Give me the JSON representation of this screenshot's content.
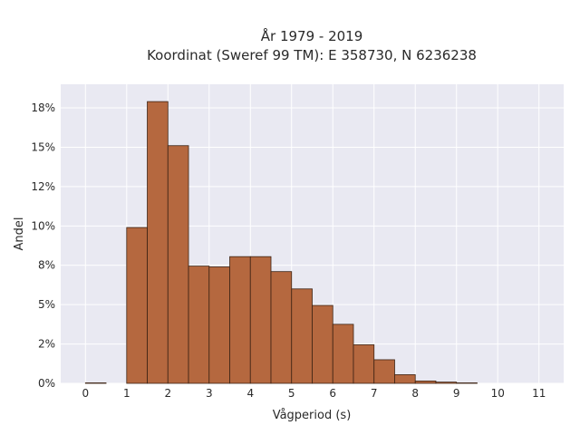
{
  "chart_data": {
    "type": "bar",
    "title_line1": "År 1979 - 2019",
    "title_line2": "Koordinat (Sweref 99 TM): E 358730, N 6236238",
    "xlabel": "Vågperiod (s)",
    "ylabel": "Andel",
    "bin_width": 0.5,
    "bins": [
      {
        "start": 0.0,
        "value": 0.03
      },
      {
        "start": 1.0,
        "value": 9.9
      },
      {
        "start": 1.5,
        "value": 17.9
      },
      {
        "start": 2.0,
        "value": 15.1
      },
      {
        "start": 2.5,
        "value": 7.45
      },
      {
        "start": 3.0,
        "value": 7.4
      },
      {
        "start": 3.5,
        "value": 8.05
      },
      {
        "start": 4.0,
        "value": 8.05
      },
      {
        "start": 4.5,
        "value": 7.1
      },
      {
        "start": 5.0,
        "value": 6.0
      },
      {
        "start": 5.5,
        "value": 4.95
      },
      {
        "start": 6.0,
        "value": 3.75
      },
      {
        "start": 6.5,
        "value": 2.45
      },
      {
        "start": 7.0,
        "value": 1.5
      },
      {
        "start": 7.5,
        "value": 0.55
      },
      {
        "start": 8.0,
        "value": 0.15
      },
      {
        "start": 8.5,
        "value": 0.08
      },
      {
        "start": 9.0,
        "value": 0.03
      }
    ],
    "xlim": [
      -0.6,
      11.6
    ],
    "ylim": [
      0,
      19
    ],
    "x_ticks": [
      0,
      1,
      2,
      3,
      4,
      5,
      6,
      7,
      8,
      9,
      10,
      11
    ],
    "y_ticks": [
      0,
      2.5,
      5,
      7.5,
      10,
      12.5,
      15,
      17.5
    ],
    "y_tick_labels": [
      "0%",
      "2%",
      "5%",
      "8%",
      "10%",
      "12%",
      "15%",
      "18%"
    ],
    "grid": true,
    "colors": {
      "bar_fill": "#b5683f",
      "bar_stroke": "#3d2314",
      "plot_bg": "#e9e9f2",
      "grid": "#ffffff"
    }
  }
}
